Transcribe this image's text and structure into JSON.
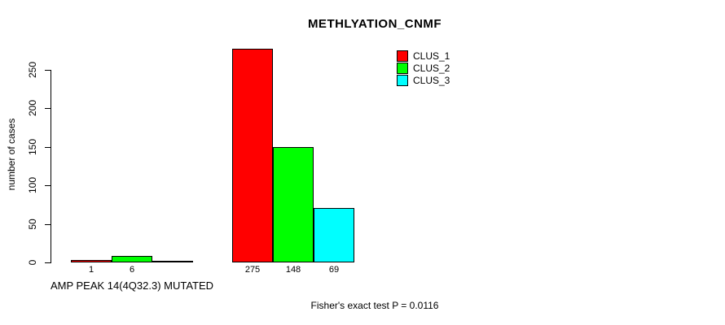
{
  "chart_data": {
    "type": "bar",
    "title": "METHLYATION_CNMF",
    "ylabel": "number of cases",
    "ylim": [
      0,
      250
    ],
    "yticks": [
      0,
      50,
      100,
      150,
      200,
      250
    ],
    "grid": false,
    "legend_position": "top-right",
    "series_names": [
      "CLUS_1",
      "CLUS_2",
      "CLUS_3"
    ],
    "series_colors": [
      "#ff0000",
      "#00ff00",
      "#00ffff"
    ],
    "groups": [
      {
        "label": "AMP PEAK 14(4Q32.3) MUTATED",
        "values": [
          1,
          6,
          0
        ],
        "value_labels": [
          "1",
          "6",
          ""
        ]
      },
      {
        "label": "",
        "values": [
          275,
          148,
          69
        ],
        "value_labels": [
          "275",
          "148",
          "69"
        ]
      }
    ],
    "annotation": "Fisher's exact test P = 0.0116"
  }
}
